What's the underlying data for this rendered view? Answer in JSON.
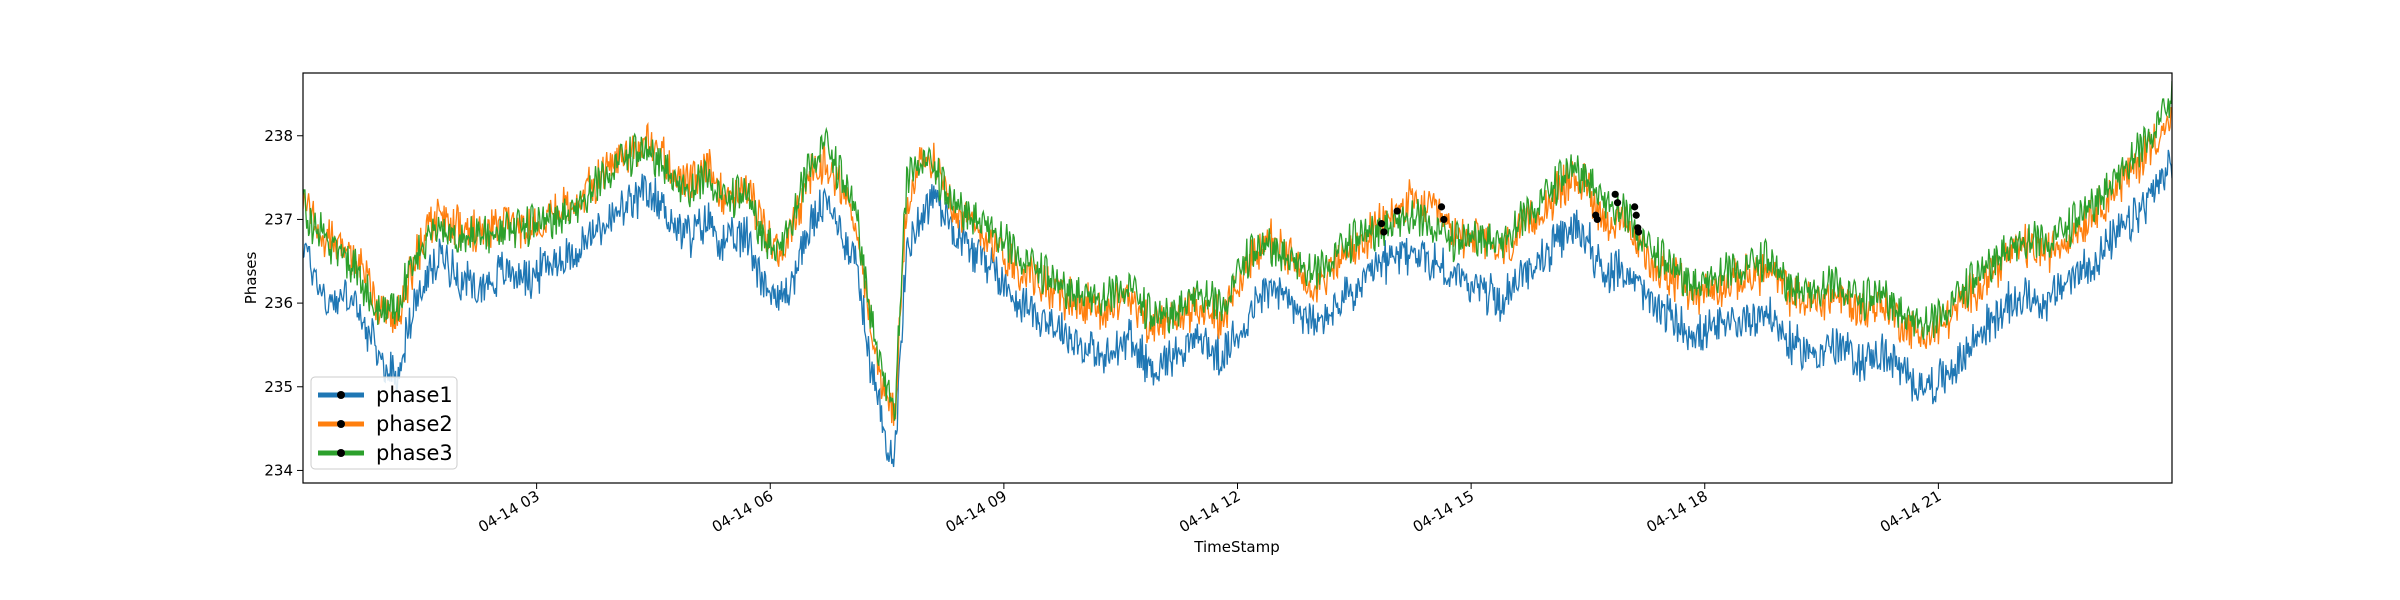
{
  "chart_data": {
    "type": "line",
    "title": "",
    "xlabel": "TimeStamp",
    "ylabel": "Phases",
    "ylim": [
      233.85,
      238.75
    ],
    "xlim_hours": [
      0,
      24
    ],
    "x_ticks": [
      {
        "hour": 3,
        "label": "04-14 03"
      },
      {
        "hour": 6,
        "label": "04-14 06"
      },
      {
        "hour": 9,
        "label": "04-14 09"
      },
      {
        "hour": 12,
        "label": "04-14 12"
      },
      {
        "hour": 15,
        "label": "04-14 15"
      },
      {
        "hour": 18,
        "label": "04-14 18"
      },
      {
        "hour": 21,
        "label": "04-14 21"
      }
    ],
    "y_ticks": [
      234,
      235,
      236,
      237,
      238
    ],
    "grid": false,
    "legend": "lower-left",
    "series": [
      {
        "name": "phase1",
        "color": "#1f77b4",
        "points": [
          [
            0.0,
            236.7
          ],
          [
            0.3,
            236.0
          ],
          [
            0.6,
            236.1
          ],
          [
            0.8,
            235.7
          ],
          [
            1.0,
            235.3
          ],
          [
            1.2,
            235.1
          ],
          [
            1.4,
            235.9
          ],
          [
            1.6,
            236.3
          ],
          [
            1.8,
            236.6
          ],
          [
            2.0,
            236.3
          ],
          [
            2.3,
            236.2
          ],
          [
            2.6,
            236.4
          ],
          [
            2.9,
            236.3
          ],
          [
            3.2,
            236.5
          ],
          [
            3.5,
            236.6
          ],
          [
            3.8,
            236.9
          ],
          [
            4.1,
            237.1
          ],
          [
            4.4,
            237.3
          ],
          [
            4.6,
            237.2
          ],
          [
            4.8,
            236.9
          ],
          [
            5.0,
            236.8
          ],
          [
            5.2,
            237.0
          ],
          [
            5.4,
            236.7
          ],
          [
            5.7,
            236.8
          ],
          [
            5.9,
            236.3
          ],
          [
            6.1,
            236.0
          ],
          [
            6.3,
            236.3
          ],
          [
            6.5,
            236.9
          ],
          [
            6.7,
            237.2
          ],
          [
            6.9,
            236.9
          ],
          [
            7.1,
            236.5
          ],
          [
            7.3,
            235.2
          ],
          [
            7.45,
            234.5
          ],
          [
            7.6,
            234.2
          ],
          [
            7.75,
            236.6
          ],
          [
            7.9,
            237.0
          ],
          [
            8.1,
            237.3
          ],
          [
            8.3,
            237.0
          ],
          [
            8.5,
            236.7
          ],
          [
            8.8,
            236.5
          ],
          [
            9.1,
            236.1
          ],
          [
            9.4,
            235.9
          ],
          [
            9.7,
            235.7
          ],
          [
            10.0,
            235.5
          ],
          [
            10.3,
            235.3
          ],
          [
            10.6,
            235.6
          ],
          [
            10.9,
            235.2
          ],
          [
            11.2,
            235.4
          ],
          [
            11.5,
            235.6
          ],
          [
            11.8,
            235.3
          ],
          [
            12.1,
            235.8
          ],
          [
            12.4,
            236.2
          ],
          [
            12.7,
            236.0
          ],
          [
            13.0,
            235.7
          ],
          [
            13.3,
            236.0
          ],
          [
            13.6,
            236.2
          ],
          [
            13.9,
            236.5
          ],
          [
            14.2,
            236.6
          ],
          [
            14.5,
            236.5
          ],
          [
            14.8,
            236.3
          ],
          [
            15.1,
            236.2
          ],
          [
            15.4,
            236.0
          ],
          [
            15.7,
            236.4
          ],
          [
            16.0,
            236.6
          ],
          [
            16.3,
            236.9
          ],
          [
            16.5,
            236.8
          ],
          [
            16.7,
            236.3
          ],
          [
            17.0,
            236.4
          ],
          [
            17.3,
            236.0
          ],
          [
            17.6,
            235.8
          ],
          [
            17.9,
            235.6
          ],
          [
            18.2,
            235.7
          ],
          [
            18.5,
            235.8
          ],
          [
            18.8,
            235.9
          ],
          [
            19.1,
            235.5
          ],
          [
            19.4,
            235.4
          ],
          [
            19.7,
            235.5
          ],
          [
            20.0,
            235.3
          ],
          [
            20.3,
            235.4
          ],
          [
            20.6,
            235.1
          ],
          [
            20.9,
            235.0
          ],
          [
            21.2,
            235.2
          ],
          [
            21.5,
            235.6
          ],
          [
            21.8,
            235.9
          ],
          [
            22.1,
            236.1
          ],
          [
            22.4,
            236.0
          ],
          [
            22.7,
            236.3
          ],
          [
            23.0,
            236.5
          ],
          [
            23.3,
            236.8
          ],
          [
            23.6,
            237.1
          ],
          [
            23.8,
            237.4
          ],
          [
            24.0,
            237.6
          ]
        ]
      },
      {
        "name": "phase2",
        "color": "#ff7f0e",
        "points": [
          [
            0.0,
            237.2
          ],
          [
            0.3,
            236.8
          ],
          [
            0.6,
            236.6
          ],
          [
            0.8,
            236.3
          ],
          [
            1.0,
            235.9
          ],
          [
            1.2,
            235.8
          ],
          [
            1.4,
            236.4
          ],
          [
            1.6,
            236.9
          ],
          [
            1.8,
            237.0
          ],
          [
            2.0,
            236.9
          ],
          [
            2.3,
            236.8
          ],
          [
            2.6,
            237.0
          ],
          [
            2.9,
            236.9
          ],
          [
            3.2,
            237.1
          ],
          [
            3.5,
            237.2
          ],
          [
            3.8,
            237.5
          ],
          [
            4.1,
            237.8
          ],
          [
            4.4,
            237.9
          ],
          [
            4.6,
            237.8
          ],
          [
            4.8,
            237.5
          ],
          [
            5.0,
            237.4
          ],
          [
            5.2,
            237.6
          ],
          [
            5.4,
            237.3
          ],
          [
            5.7,
            237.4
          ],
          [
            5.9,
            236.9
          ],
          [
            6.1,
            236.6
          ],
          [
            6.3,
            236.9
          ],
          [
            6.5,
            237.5
          ],
          [
            6.7,
            237.7
          ],
          [
            6.9,
            237.4
          ],
          [
            7.1,
            237.0
          ],
          [
            7.3,
            235.6
          ],
          [
            7.45,
            235.0
          ],
          [
            7.6,
            234.6
          ],
          [
            7.75,
            237.2
          ],
          [
            7.9,
            237.6
          ],
          [
            8.1,
            237.7
          ],
          [
            8.3,
            237.3
          ],
          [
            8.5,
            237.0
          ],
          [
            8.8,
            236.8
          ],
          [
            9.1,
            236.5
          ],
          [
            9.4,
            236.3
          ],
          [
            9.7,
            236.1
          ],
          [
            10.0,
            236.0
          ],
          [
            10.3,
            235.9
          ],
          [
            10.6,
            236.1
          ],
          [
            10.9,
            235.7
          ],
          [
            11.2,
            235.8
          ],
          [
            11.5,
            236.0
          ],
          [
            11.8,
            235.8
          ],
          [
            12.1,
            236.4
          ],
          [
            12.4,
            236.8
          ],
          [
            12.7,
            236.5
          ],
          [
            13.0,
            236.2
          ],
          [
            13.3,
            236.5
          ],
          [
            13.6,
            236.7
          ],
          [
            13.9,
            237.0
          ],
          [
            14.2,
            237.2
          ],
          [
            14.5,
            237.1
          ],
          [
            14.8,
            236.8
          ],
          [
            15.1,
            236.8
          ],
          [
            15.4,
            236.6
          ],
          [
            15.7,
            236.9
          ],
          [
            16.0,
            237.2
          ],
          [
            16.3,
            237.5
          ],
          [
            16.5,
            237.4
          ],
          [
            16.7,
            237.0
          ],
          [
            17.0,
            236.9
          ],
          [
            17.3,
            236.5
          ],
          [
            17.6,
            236.3
          ],
          [
            17.9,
            236.1
          ],
          [
            18.2,
            236.2
          ],
          [
            18.5,
            236.3
          ],
          [
            18.8,
            236.4
          ],
          [
            19.1,
            236.1
          ],
          [
            19.4,
            236.0
          ],
          [
            19.7,
            236.1
          ],
          [
            20.0,
            235.9
          ],
          [
            20.3,
            236.0
          ],
          [
            20.6,
            235.7
          ],
          [
            20.9,
            235.6
          ],
          [
            21.2,
            235.9
          ],
          [
            21.5,
            236.2
          ],
          [
            21.8,
            236.5
          ],
          [
            22.1,
            236.7
          ],
          [
            22.4,
            236.6
          ],
          [
            22.7,
            236.8
          ],
          [
            23.0,
            237.1
          ],
          [
            23.3,
            237.4
          ],
          [
            23.6,
            237.7
          ],
          [
            23.8,
            238.0
          ],
          [
            24.0,
            238.2
          ]
        ]
      },
      {
        "name": "phase3",
        "color": "#2ca02c",
        "points": [
          [
            0.0,
            237.1
          ],
          [
            0.3,
            236.7
          ],
          [
            0.6,
            236.5
          ],
          [
            0.8,
            236.2
          ],
          [
            1.0,
            235.8
          ],
          [
            1.2,
            235.9
          ],
          [
            1.4,
            236.5
          ],
          [
            1.6,
            236.8
          ],
          [
            1.8,
            236.9
          ],
          [
            2.0,
            236.8
          ],
          [
            2.3,
            236.8
          ],
          [
            2.6,
            236.9
          ],
          [
            2.9,
            236.9
          ],
          [
            3.2,
            237.0
          ],
          [
            3.5,
            237.1
          ],
          [
            3.8,
            237.4
          ],
          [
            4.1,
            237.7
          ],
          [
            4.4,
            237.8
          ],
          [
            4.6,
            237.7
          ],
          [
            4.8,
            237.4
          ],
          [
            5.0,
            237.3
          ],
          [
            5.2,
            237.5
          ],
          [
            5.4,
            237.2
          ],
          [
            5.7,
            237.3
          ],
          [
            5.9,
            236.8
          ],
          [
            6.1,
            236.6
          ],
          [
            6.3,
            237.0
          ],
          [
            6.5,
            237.6
          ],
          [
            6.7,
            237.9
          ],
          [
            6.9,
            237.5
          ],
          [
            7.1,
            237.1
          ],
          [
            7.3,
            235.8
          ],
          [
            7.45,
            235.1
          ],
          [
            7.6,
            234.7
          ],
          [
            7.75,
            237.4
          ],
          [
            7.9,
            237.7
          ],
          [
            8.1,
            237.6
          ],
          [
            8.3,
            237.2
          ],
          [
            8.5,
            237.1
          ],
          [
            8.8,
            236.9
          ],
          [
            9.1,
            236.6
          ],
          [
            9.4,
            236.4
          ],
          [
            9.7,
            236.2
          ],
          [
            10.0,
            236.1
          ],
          [
            10.3,
            236.0
          ],
          [
            10.6,
            236.2
          ],
          [
            10.9,
            235.8
          ],
          [
            11.2,
            235.9
          ],
          [
            11.5,
            236.1
          ],
          [
            11.8,
            235.9
          ],
          [
            12.1,
            236.5
          ],
          [
            12.4,
            236.7
          ],
          [
            12.7,
            236.5
          ],
          [
            13.0,
            236.3
          ],
          [
            13.3,
            236.6
          ],
          [
            13.6,
            236.8
          ],
          [
            13.9,
            236.9
          ],
          [
            14.2,
            237.0
          ],
          [
            14.5,
            236.9
          ],
          [
            14.8,
            236.7
          ],
          [
            15.1,
            236.8
          ],
          [
            15.4,
            236.7
          ],
          [
            15.7,
            237.0
          ],
          [
            16.0,
            237.3
          ],
          [
            16.3,
            237.6
          ],
          [
            16.5,
            237.5
          ],
          [
            16.7,
            237.2
          ],
          [
            17.0,
            237.0
          ],
          [
            17.3,
            236.6
          ],
          [
            17.6,
            236.4
          ],
          [
            17.9,
            236.2
          ],
          [
            18.2,
            236.3
          ],
          [
            18.5,
            236.4
          ],
          [
            18.8,
            236.5
          ],
          [
            19.1,
            236.2
          ],
          [
            19.4,
            236.1
          ],
          [
            19.7,
            236.2
          ],
          [
            20.0,
            236.0
          ],
          [
            20.3,
            236.1
          ],
          [
            20.6,
            235.8
          ],
          [
            20.9,
            235.7
          ],
          [
            21.2,
            236.0
          ],
          [
            21.5,
            236.3
          ],
          [
            21.8,
            236.6
          ],
          [
            22.1,
            236.7
          ],
          [
            22.4,
            236.7
          ],
          [
            22.7,
            236.9
          ],
          [
            23.0,
            237.2
          ],
          [
            23.3,
            237.5
          ],
          [
            23.6,
            237.8
          ],
          [
            23.8,
            238.1
          ],
          [
            24.0,
            238.4
          ]
        ]
      }
    ],
    "markers": [
      {
        "hour": 13.85,
        "value": 236.95
      },
      {
        "hour": 13.88,
        "value": 236.85
      },
      {
        "hour": 14.05,
        "value": 237.1
      },
      {
        "hour": 14.62,
        "value": 237.15
      },
      {
        "hour": 14.65,
        "value": 237.0
      },
      {
        "hour": 16.6,
        "value": 237.05
      },
      {
        "hour": 16.62,
        "value": 237.0
      },
      {
        "hour": 16.85,
        "value": 237.3
      },
      {
        "hour": 16.88,
        "value": 237.2
      },
      {
        "hour": 17.1,
        "value": 237.15
      },
      {
        "hour": 17.12,
        "value": 237.05
      },
      {
        "hour": 17.14,
        "value": 236.9
      },
      {
        "hour": 17.15,
        "value": 236.85
      }
    ]
  }
}
